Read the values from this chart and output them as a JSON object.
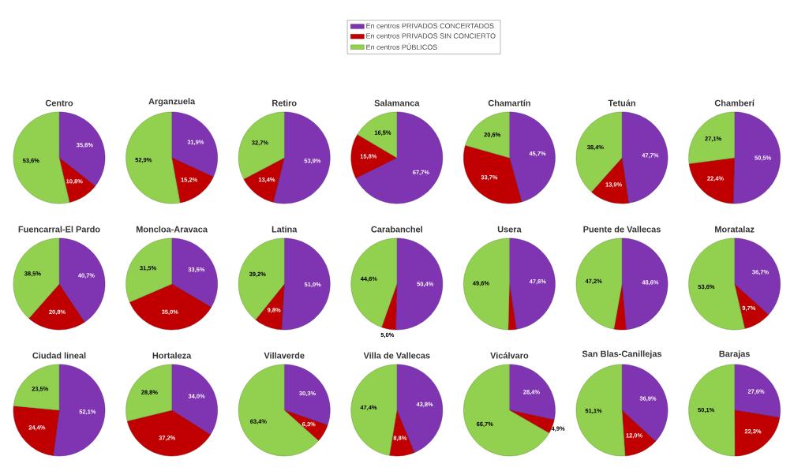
{
  "chart_data": [
    {
      "type": "pie",
      "title": "Centro",
      "categories": [
        "En centros PRIVADOS CONCERTADOS",
        "En centros PRIVADOS SIN CONCIERTO",
        "En centros PÚBLICOS"
      ],
      "legend": "top",
      "values": [
        35.6,
        10.8,
        53.6
      ],
      "colors": [
        "#7f35b2",
        "#c00000",
        "#92d050"
      ],
      "value_labels": [
        "35,6%",
        "10,8%",
        "53,6%"
      ]
    },
    {
      "type": "pie",
      "title": "Arganzuela",
      "categories": [
        null,
        null,
        null
      ],
      "values": [
        31.9,
        15.2,
        52.9
      ],
      "colors": [
        "#7f35b2",
        "#c00000",
        "#92d050"
      ],
      "value_labels": [
        "31,9%",
        "15,2%",
        "52,9%"
      ]
    },
    {
      "type": "pie",
      "title": "Retiro",
      "categories": [
        null,
        null,
        null
      ],
      "values": [
        53.9,
        13.4,
        32.7
      ],
      "colors": [
        "#7f35b2",
        "#c00000",
        "#92d050"
      ],
      "value_labels": [
        "53,9%",
        "13,4%",
        "32,7%"
      ]
    },
    {
      "type": "pie",
      "title": "Salamanca",
      "categories": [
        null,
        null,
        null
      ],
      "values": [
        67.7,
        15.8,
        16.5
      ],
      "colors": [
        "#7f35b2",
        "#c00000",
        "#92d050"
      ],
      "value_labels": [
        "67,7%",
        "15,8%",
        "16,5%"
      ]
    },
    {
      "type": "pie",
      "title": "Chamartín",
      "categories": [
        null,
        null,
        null
      ],
      "values": [
        45.7,
        33.7,
        20.6
      ],
      "colors": [
        "#7f35b2",
        "#c00000",
        "#92d050"
      ],
      "value_labels": [
        "45,7%",
        "33,7%",
        "20,6%"
      ]
    },
    {
      "type": "pie",
      "title": "Tetuán",
      "categories": [
        null,
        null,
        null
      ],
      "values": [
        47.7,
        13.9,
        38.4
      ],
      "colors": [
        "#7f35b2",
        "#c00000",
        "#92d050"
      ],
      "value_labels": [
        "47,7%",
        "13,9%",
        "38,4%"
      ]
    },
    {
      "type": "pie",
      "title": "Chamberí",
      "categories": [
        null,
        null,
        null
      ],
      "values": [
        50.5,
        22.4,
        27.1
      ],
      "colors": [
        "#7f35b2",
        "#c00000",
        "#92d050"
      ],
      "value_labels": [
        "50,5%",
        "22,4%",
        "27,1%"
      ]
    },
    {
      "type": "pie",
      "title": "Fuencarral-El Pardo",
      "categories": [
        null,
        null,
        null
      ],
      "values": [
        40.7,
        20.8,
        38.5
      ],
      "colors": [
        "#7f35b2",
        "#c00000",
        "#92d050"
      ],
      "value_labels": [
        "40,7%",
        "20,8%",
        "38,5%"
      ]
    },
    {
      "type": "pie",
      "title": "Moncloa-Aravaca",
      "categories": [
        null,
        null,
        null
      ],
      "values": [
        33.5,
        35.0,
        31.5
      ],
      "colors": [
        "#7f35b2",
        "#c00000",
        "#92d050"
      ],
      "value_labels": [
        "33,5%",
        "35,0%",
        "31,5%"
      ]
    },
    {
      "type": "pie",
      "title": "Latina",
      "categories": [
        null,
        null,
        null
      ],
      "values": [
        51.0,
        9.8,
        39.2
      ],
      "colors": [
        "#7f35b2",
        "#c00000",
        "#92d050"
      ],
      "value_labels": [
        "51,0%",
        "9,8%",
        "39,2%"
      ]
    },
    {
      "type": "pie",
      "title": "Carabanchel",
      "categories": [
        null,
        null,
        null
      ],
      "values": [
        50.4,
        5.0,
        44.6
      ],
      "colors": [
        "#7f35b2",
        "#c00000",
        "#92d050"
      ],
      "value_labels": [
        "50,4%",
        "5,0%",
        "44,6%"
      ]
    },
    {
      "type": "pie",
      "title": "Usera",
      "categories": [
        null,
        null,
        null
      ],
      "values": [
        47.6,
        2.8,
        49.6
      ],
      "colors": [
        "#7f35b2",
        "#c00000",
        "#92d050"
      ],
      "value_labels": [
        "47,6%",
        null,
        "49,6%"
      ]
    },
    {
      "type": "pie",
      "title": "Puente de Vallecas",
      "categories": [
        null,
        null,
        null
      ],
      "values": [
        48.6,
        4.2,
        47.2
      ],
      "colors": [
        "#7f35b2",
        "#c00000",
        "#92d050"
      ],
      "value_labels": [
        "48,6%",
        null,
        "47,2%"
      ]
    },
    {
      "type": "pie",
      "title": "Moratalaz",
      "categories": [
        null,
        null,
        null
      ],
      "values": [
        36.7,
        9.7,
        53.6
      ],
      "colors": [
        "#7f35b2",
        "#c00000",
        "#92d050"
      ],
      "value_labels": [
        "36,7%",
        "9,7%",
        "53,6%"
      ]
    },
    {
      "type": "pie",
      "title": "Ciudad lineal",
      "categories": [
        null,
        null,
        null
      ],
      "values": [
        52.1,
        24.4,
        23.5
      ],
      "colors": [
        "#7f35b2",
        "#c00000",
        "#92d050"
      ],
      "value_labels": [
        "52,1%",
        "24,4%",
        "23,5%"
      ]
    },
    {
      "type": "pie",
      "title": "Hortaleza",
      "categories": [
        null,
        null,
        null
      ],
      "values": [
        34.0,
        37.2,
        28.8
      ],
      "colors": [
        "#7f35b2",
        "#c00000",
        "#92d050"
      ],
      "value_labels": [
        "34,0%",
        "37,2%",
        "28,8%"
      ]
    },
    {
      "type": "pie",
      "title": "Villaverde",
      "categories": [
        null,
        null,
        null
      ],
      "values": [
        30.3,
        6.3,
        63.4
      ],
      "colors": [
        "#7f35b2",
        "#c00000",
        "#92d050"
      ],
      "value_labels": [
        "30,3%",
        "6,3%",
        "63,4%"
      ]
    },
    {
      "type": "pie",
      "title": "Villa de Vallecas",
      "categories": [
        null,
        null,
        null
      ],
      "values": [
        43.8,
        8.8,
        47.4
      ],
      "colors": [
        "#7f35b2",
        "#c00000",
        "#92d050"
      ],
      "value_labels": [
        "43,8%",
        "8,8%",
        "47,4%"
      ]
    },
    {
      "type": "pie",
      "title": "Vicálvaro",
      "categories": [
        null,
        null,
        null
      ],
      "values": [
        28.4,
        4.9,
        66.7
      ],
      "colors": [
        "#7f35b2",
        "#c00000",
        "#92d050"
      ],
      "value_labels": [
        "28,4%",
        "4,9%",
        "66,7%"
      ]
    },
    {
      "type": "pie",
      "title": "San Blas-Canillejas",
      "categories": [
        null,
        null,
        null
      ],
      "values": [
        36.9,
        12.0,
        51.1
      ],
      "colors": [
        "#7f35b2",
        "#c00000",
        "#92d050"
      ],
      "value_labels": [
        "36,9%",
        "12,0%",
        "51,1%"
      ]
    },
    {
      "type": "pie",
      "title": "Barajas",
      "categories": [
        null,
        null,
        null
      ],
      "values": [
        27.6,
        22.3,
        50.1
      ],
      "colors": [
        "#7f35b2",
        "#c00000",
        "#92d050"
      ],
      "value_labels": [
        "27,6%",
        "22,3%",
        "50,1%"
      ]
    }
  ]
}
